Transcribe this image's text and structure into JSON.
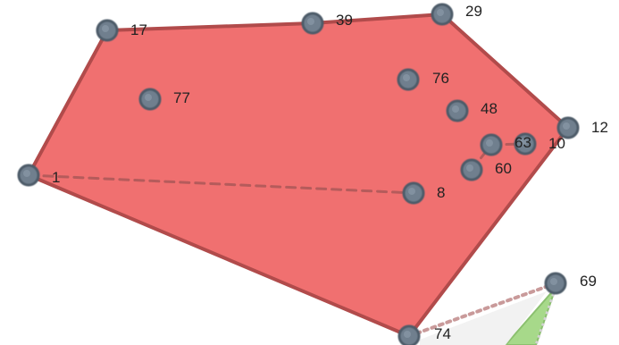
{
  "diagram": {
    "nodes": [
      {
        "id": "1",
        "label": "1"
      },
      {
        "id": "17",
        "label": "17"
      },
      {
        "id": "39",
        "label": "39"
      },
      {
        "id": "29",
        "label": "29"
      },
      {
        "id": "12",
        "label": "12"
      },
      {
        "id": "74",
        "label": "74"
      },
      {
        "id": "77",
        "label": "77"
      },
      {
        "id": "76",
        "label": "76"
      },
      {
        "id": "48",
        "label": "48"
      },
      {
        "id": "63",
        "label": "63"
      },
      {
        "id": "10",
        "label": "10"
      },
      {
        "id": "60",
        "label": "60"
      },
      {
        "id": "8",
        "label": "8"
      },
      {
        "id": "69",
        "label": "69"
      }
    ],
    "hull_polygon_order": [
      "1",
      "17",
      "39",
      "29",
      "12",
      "74"
    ],
    "dashed_edges": [
      [
        "1",
        "8"
      ],
      [
        "60",
        "63"
      ],
      [
        "63",
        "10"
      ],
      [
        "74",
        "69"
      ]
    ],
    "colors": {
      "hull_fill": "#f07070",
      "hull_stroke": "#b14b4b",
      "node_fill": "#707f8e",
      "node_stroke": "#4d5b69",
      "dash_red": "#b55b5b",
      "dash_pink": "#c99a9a",
      "green_fill": "#a7d98a"
    }
  }
}
